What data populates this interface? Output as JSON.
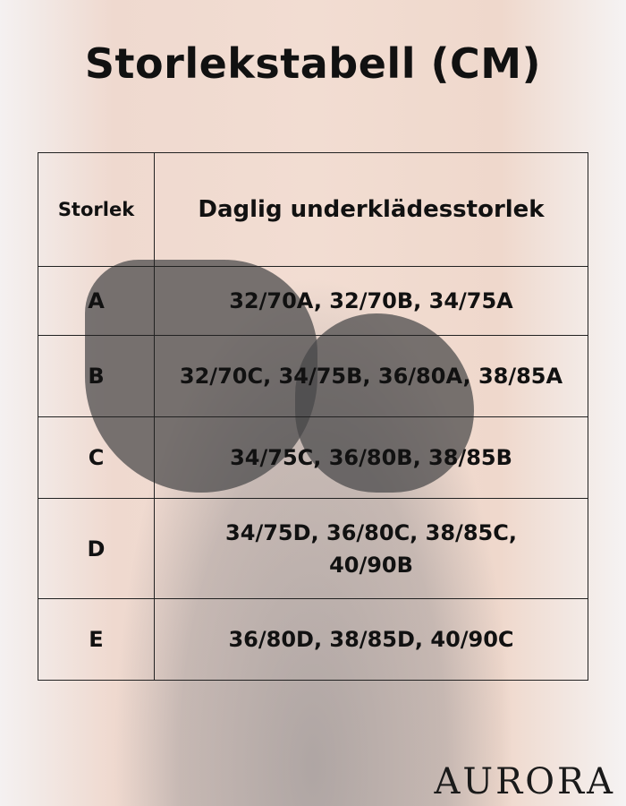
{
  "title": "Storlekstabell (CM)",
  "table": {
    "headers": [
      "Storlek",
      "Daglig underklädesstorlek"
    ],
    "rows": [
      {
        "size": "A",
        "sizes": "32/70A, 32/70B, 34/75A"
      },
      {
        "size": "B",
        "sizes": "32/70C, 34/75B, 36/80A, 38/85A"
      },
      {
        "size": "C",
        "sizes": "34/75C, 36/80B, 38/85B"
      },
      {
        "size": "D",
        "sizes": "34/75D, 36/80C, 38/85C, 40/90B"
      },
      {
        "size": "E",
        "sizes": "36/80D, 38/85D, 40/90C"
      }
    ]
  },
  "brand": "AURORA"
}
